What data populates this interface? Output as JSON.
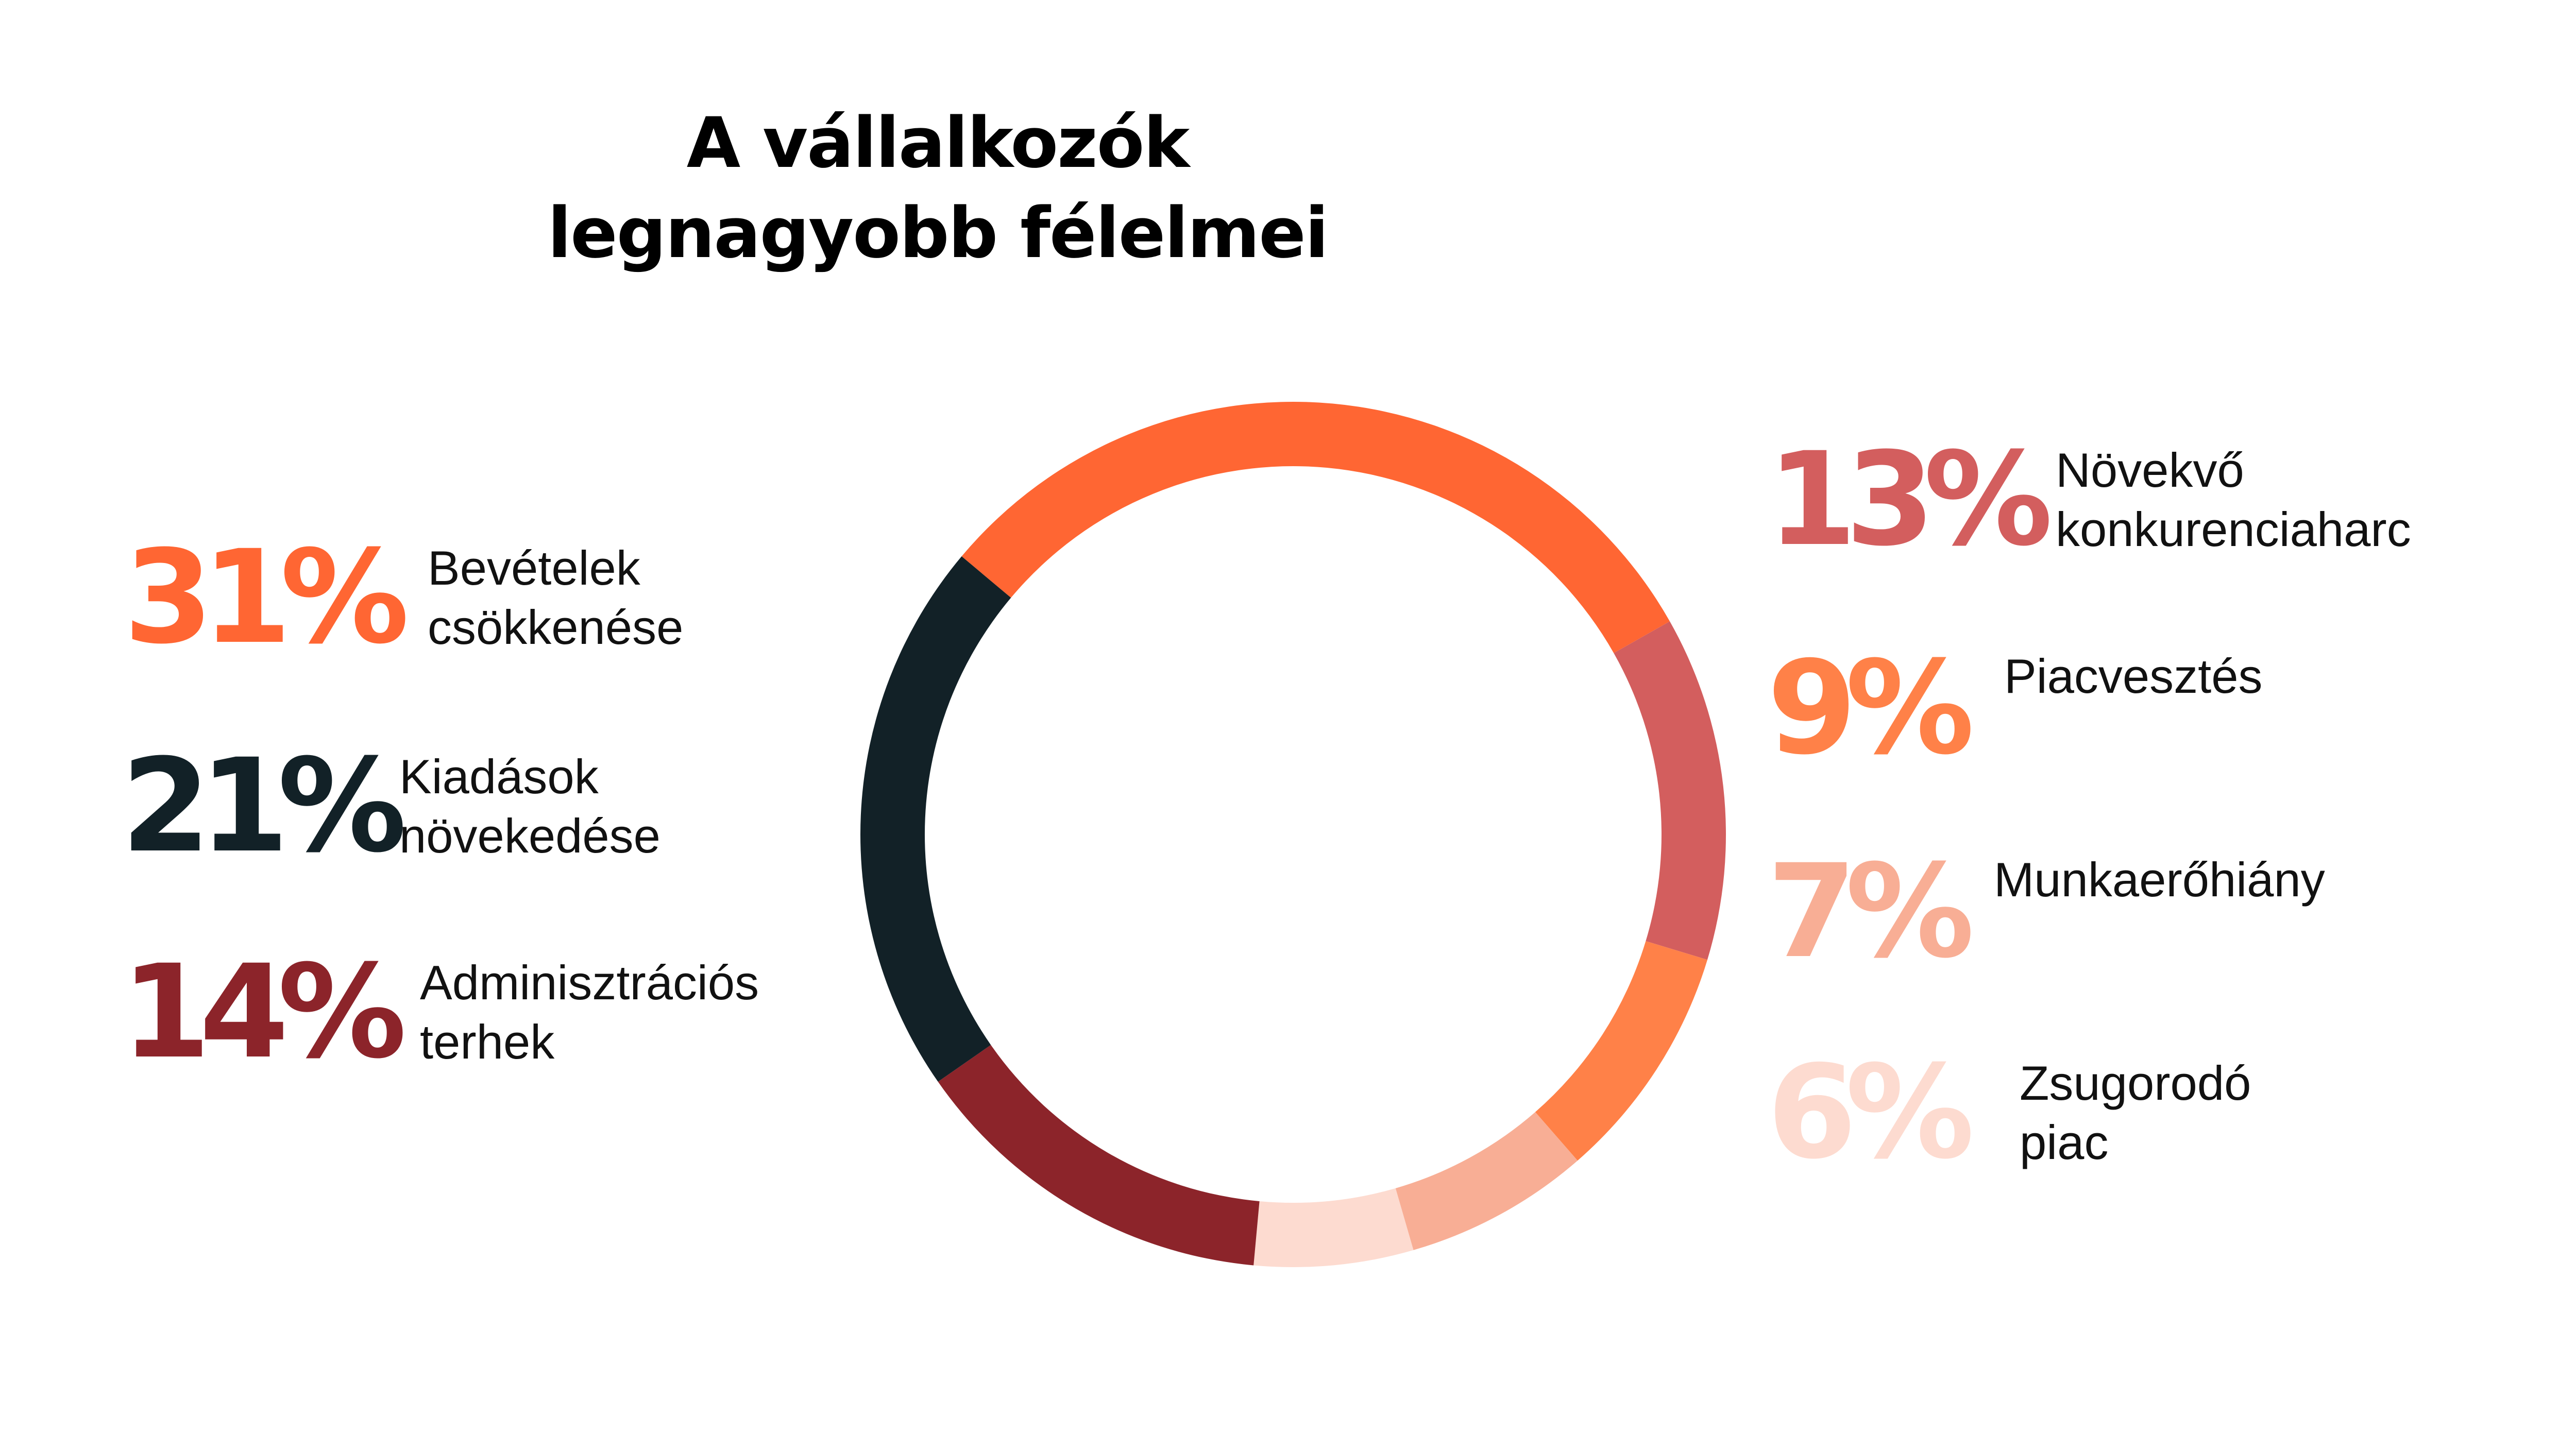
{
  "title_line1": "A vállalkozók",
  "title_line2": "legnagyobb félelmei",
  "chart_data": {
    "type": "pie",
    "title": "A vállalkozók legnagyobb félelmei",
    "donut": true,
    "legend": "left-and-right",
    "slices": [
      {
        "label": "Bevételek csökkenése",
        "value": 31,
        "display": "31%",
        "color": "#ff6633"
      },
      {
        "label": "Növekvő konkurenciaharc",
        "value": 13,
        "display": "13%",
        "color": "#d35e5e"
      },
      {
        "label": "Piacvesztés",
        "value": 9,
        "display": "9%",
        "color": "#ff8148"
      },
      {
        "label": "Munkaerőhiány",
        "value": 7,
        "display": "7%",
        "color": "#f8ae95"
      },
      {
        "label": "Zsugorodó piac",
        "value": 6,
        "display": "6%",
        "color": "#fddbd0"
      },
      {
        "label": "Adminisztrációs terhek",
        "value": 14,
        "display": "14%",
        "color": "#8c242a"
      },
      {
        "label": "Kiadások növekedése",
        "value": 21,
        "display": "21%",
        "color": "#122127"
      }
    ]
  },
  "legend_text": {
    "s0": "Bevételek\ncsökkenése",
    "s1": "Növekvő\nkonkurenciaharc",
    "s2": "Piacvesztés",
    "s3": "Munkaerőhiány",
    "s4": "Zsugorodó\npiac",
    "s5": "Adminisztrációs\nterhek",
    "s6": "Kiadások\nnövekedése"
  }
}
